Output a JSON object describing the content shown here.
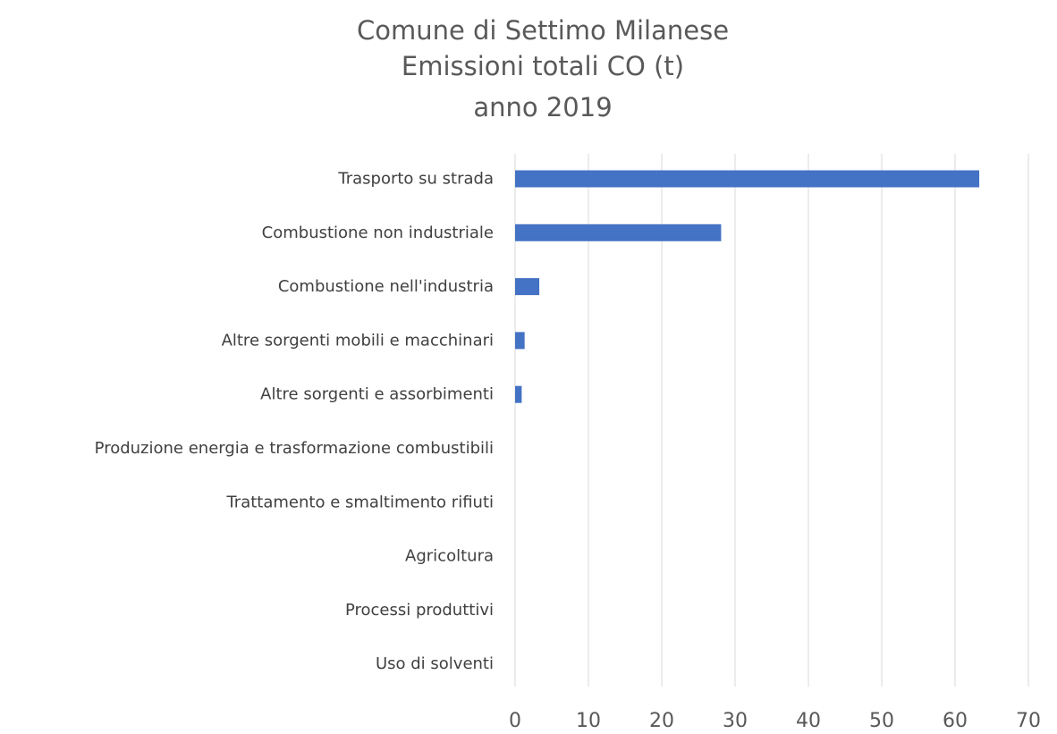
{
  "chart_data": {
    "type": "bar",
    "orientation": "horizontal",
    "title": [
      "Comune di Settimo Milanese",
      "Emissioni totali CO (t)",
      "anno 2019"
    ],
    "categories": [
      "Trasporto su strada",
      "Combustione non industriale",
      "Combustione nell'industria",
      "Altre sorgenti mobili e macchinari",
      "Altre sorgenti e assorbimenti",
      "Produzione energia e trasformazione combustibili",
      "Trattamento e smaltimento rifiuti",
      "Agricoltura",
      "Processi produttivi",
      "Uso di solventi"
    ],
    "values": [
      63.3,
      28.1,
      3.3,
      1.3,
      0.9,
      0,
      0,
      0,
      0,
      0
    ],
    "xlim": [
      0,
      70
    ],
    "xticks": [
      "0",
      "10",
      "20",
      "30",
      "40",
      "50",
      "60",
      "70"
    ],
    "grid": true,
    "legend": "none",
    "color": "#4472c4"
  }
}
